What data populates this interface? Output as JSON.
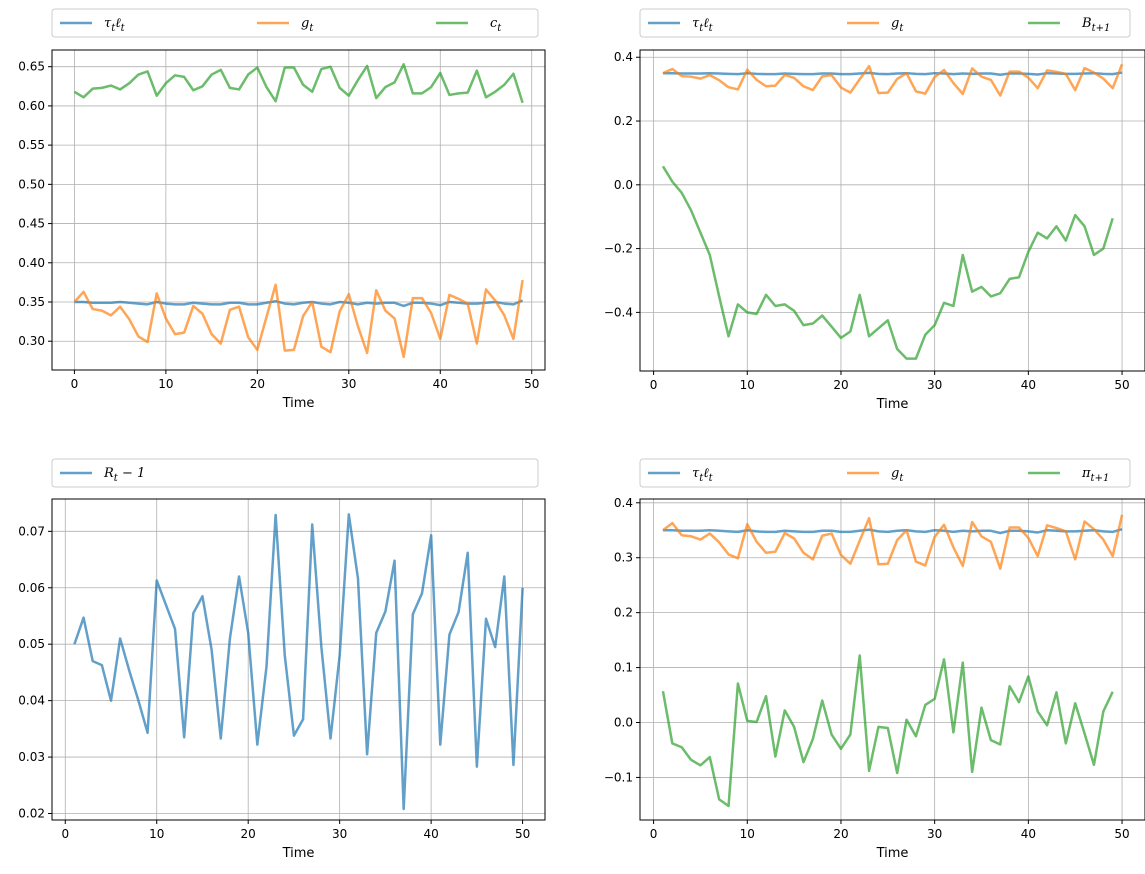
{
  "colors": {
    "blue": "#1f77b4",
    "orange": "#ff7f0e",
    "green": "#2ca02c",
    "grid": "#b0b0b0"
  },
  "chart_data": [
    {
      "type": "line",
      "xlabel": "Time",
      "xlim": [
        -2.45,
        51.45
      ],
      "ylim": [
        0.2633,
        0.6713
      ],
      "xticks": [
        0,
        10,
        20,
        30,
        40,
        50
      ],
      "yticks": [
        0.3,
        0.35,
        0.4,
        0.45,
        0.5,
        0.55,
        0.6,
        0.65
      ],
      "ytick_labels": [
        "0.30",
        "0.35",
        "0.40",
        "0.45",
        "0.50",
        "0.55",
        "0.60",
        "0.65"
      ],
      "grid": true,
      "legend_placement": "above",
      "series": [
        {
          "name": "τtℓt",
          "color": "#1f77b4",
          "x_start": 0,
          "x_step": 1,
          "values": [
            0.35,
            0.35,
            0.349,
            0.349,
            0.349,
            0.35,
            0.349,
            0.348,
            0.347,
            0.35,
            0.348,
            0.347,
            0.347,
            0.349,
            0.348,
            0.347,
            0.347,
            0.349,
            0.349,
            0.347,
            0.347,
            0.349,
            0.351,
            0.348,
            0.347,
            0.349,
            0.35,
            0.348,
            0.347,
            0.35,
            0.349,
            0.347,
            0.349,
            0.348,
            0.349,
            0.349,
            0.345,
            0.349,
            0.349,
            0.348,
            0.346,
            0.35,
            0.349,
            0.348,
            0.348,
            0.349,
            0.35,
            0.348,
            0.347,
            0.352
          ]
        },
        {
          "name": "gt",
          "color": "#ff7f0e",
          "x_start": 0,
          "x_step": 1,
          "values": [
            0.35,
            0.363,
            0.341,
            0.339,
            0.333,
            0.344,
            0.328,
            0.306,
            0.299,
            0.361,
            0.329,
            0.309,
            0.311,
            0.345,
            0.335,
            0.309,
            0.297,
            0.34,
            0.344,
            0.305,
            0.289,
            0.331,
            0.372,
            0.288,
            0.289,
            0.332,
            0.35,
            0.293,
            0.286,
            0.338,
            0.36,
            0.319,
            0.285,
            0.365,
            0.339,
            0.329,
            0.28,
            0.355,
            0.355,
            0.336,
            0.303,
            0.359,
            0.354,
            0.348,
            0.297,
            0.366,
            0.352,
            0.333,
            0.303,
            0.378
          ]
        },
        {
          "name": "ct",
          "color": "#2ca02c",
          "x_start": 0,
          "x_step": 1,
          "values": [
            0.618,
            0.611,
            0.622,
            0.623,
            0.626,
            0.621,
            0.629,
            0.64,
            0.644,
            0.613,
            0.629,
            0.639,
            0.637,
            0.62,
            0.625,
            0.64,
            0.646,
            0.623,
            0.621,
            0.64,
            0.649,
            0.624,
            0.606,
            0.649,
            0.649,
            0.627,
            0.618,
            0.647,
            0.65,
            0.623,
            0.613,
            0.633,
            0.651,
            0.61,
            0.624,
            0.63,
            0.653,
            0.616,
            0.616,
            0.624,
            0.642,
            0.614,
            0.616,
            0.617,
            0.645,
            0.611,
            0.618,
            0.627,
            0.641,
            0.604
          ]
        }
      ]
    },
    {
      "type": "line",
      "xlabel": "Time",
      "xlim": [
        -1.45,
        52.45
      ],
      "ylim": [
        -0.5838,
        0.4227
      ],
      "xticks": [
        0,
        10,
        20,
        30,
        40,
        50
      ],
      "yticks": [
        -0.4,
        -0.2,
        0.0,
        0.2,
        0.4
      ],
      "ytick_labels": [
        "−0.4",
        "−0.2",
        "0.0",
        "0.2",
        "0.4"
      ],
      "grid": true,
      "legend_placement": "above",
      "series": [
        {
          "name": "τtℓt",
          "color": "#1f77b4",
          "x_start": 1,
          "x_step": 1,
          "values": [
            0.35,
            0.35,
            0.349,
            0.349,
            0.349,
            0.35,
            0.349,
            0.348,
            0.347,
            0.35,
            0.348,
            0.347,
            0.347,
            0.349,
            0.348,
            0.347,
            0.347,
            0.349,
            0.349,
            0.347,
            0.347,
            0.349,
            0.351,
            0.348,
            0.347,
            0.349,
            0.35,
            0.348,
            0.347,
            0.35,
            0.349,
            0.347,
            0.349,
            0.348,
            0.349,
            0.349,
            0.345,
            0.349,
            0.349,
            0.348,
            0.346,
            0.35,
            0.349,
            0.348,
            0.348,
            0.349,
            0.35,
            0.348,
            0.347,
            0.352
          ]
        },
        {
          "name": "gt",
          "color": "#ff7f0e",
          "x_start": 1,
          "x_step": 1,
          "values": [
            0.35,
            0.363,
            0.341,
            0.339,
            0.333,
            0.344,
            0.328,
            0.306,
            0.299,
            0.361,
            0.329,
            0.309,
            0.311,
            0.345,
            0.335,
            0.309,
            0.297,
            0.34,
            0.344,
            0.305,
            0.289,
            0.331,
            0.372,
            0.288,
            0.289,
            0.332,
            0.35,
            0.293,
            0.286,
            0.338,
            0.36,
            0.319,
            0.285,
            0.365,
            0.339,
            0.329,
            0.28,
            0.355,
            0.355,
            0.336,
            0.303,
            0.359,
            0.354,
            0.348,
            0.297,
            0.366,
            0.352,
            0.333,
            0.303,
            0.378
          ]
        },
        {
          "name": "Bt+1",
          "color": "#2ca02c",
          "x_start": 1,
          "x_step": 1,
          "values": [
            0.058,
            0.01,
            -0.025,
            -0.08,
            -0.15,
            -0.22,
            -0.35,
            -0.475,
            -0.375,
            -0.4,
            -0.405,
            -0.345,
            -0.38,
            -0.375,
            -0.395,
            -0.44,
            -0.435,
            -0.41,
            -0.445,
            -0.48,
            -0.46,
            -0.345,
            -0.475,
            -0.45,
            -0.425,
            -0.515,
            -0.545,
            -0.545,
            -0.47,
            -0.44,
            -0.37,
            -0.38,
            -0.22,
            -0.335,
            -0.32,
            -0.35,
            -0.34,
            -0.295,
            -0.29,
            -0.21,
            -0.15,
            -0.168,
            -0.13,
            -0.175,
            -0.095,
            -0.13,
            -0.22,
            -0.2,
            -0.105
          ]
        }
      ]
    },
    {
      "type": "line",
      "xlabel": "Time",
      "xlim": [
        -1.45,
        52.45
      ],
      "ylim": [
        0.01885,
        0.07573
      ],
      "xticks": [
        0,
        10,
        20,
        30,
        40,
        50
      ],
      "yticks": [
        0.02,
        0.03,
        0.04,
        0.05,
        0.06,
        0.07
      ],
      "ytick_labels": [
        "0.02",
        "0.03",
        "0.04",
        "0.05",
        "0.06",
        "0.07"
      ],
      "grid": true,
      "legend_placement": "above",
      "series": [
        {
          "name": "Rt − 1",
          "color": "#1f77b4",
          "x_start": 1,
          "x_step": 1,
          "values": [
            0.05,
            0.0547,
            0.047,
            0.0463,
            0.04,
            0.051,
            0.0453,
            0.04,
            0.0343,
            0.0613,
            0.057,
            0.0527,
            0.0335,
            0.0555,
            0.0585,
            0.049,
            0.0333,
            0.051,
            0.062,
            0.052,
            0.0322,
            0.046,
            0.0729,
            0.048,
            0.0338,
            0.0367,
            0.0712,
            0.0495,
            0.0333,
            0.048,
            0.073,
            0.0617,
            0.0305,
            0.052,
            0.0558,
            0.0648,
            0.0208,
            0.0553,
            0.059,
            0.0693,
            0.0322,
            0.0517,
            0.0557,
            0.0662,
            0.0283,
            0.0545,
            0.0495,
            0.062,
            0.0286,
            0.06
          ]
        }
      ]
    },
    {
      "type": "line",
      "xlabel": "Time",
      "xlim": [
        -1.45,
        52.45
      ],
      "ylim": [
        -0.1775,
        0.4069
      ],
      "xticks": [
        0,
        10,
        20,
        30,
        40,
        50
      ],
      "yticks": [
        -0.1,
        0.0,
        0.1,
        0.2,
        0.3,
        0.4
      ],
      "ytick_labels": [
        "−0.1",
        "0.0",
        "0.1",
        "0.2",
        "0.3",
        "0.4"
      ],
      "grid": true,
      "legend_placement": "above",
      "series": [
        {
          "name": "τtℓt",
          "color": "#1f77b4",
          "x_start": 1,
          "x_step": 1,
          "values": [
            0.35,
            0.35,
            0.349,
            0.349,
            0.349,
            0.35,
            0.349,
            0.348,
            0.347,
            0.35,
            0.348,
            0.347,
            0.347,
            0.349,
            0.348,
            0.347,
            0.347,
            0.349,
            0.349,
            0.347,
            0.347,
            0.349,
            0.351,
            0.348,
            0.347,
            0.349,
            0.35,
            0.348,
            0.347,
            0.35,
            0.349,
            0.347,
            0.349,
            0.348,
            0.349,
            0.349,
            0.345,
            0.349,
            0.349,
            0.348,
            0.346,
            0.35,
            0.349,
            0.348,
            0.348,
            0.349,
            0.35,
            0.348,
            0.347,
            0.352
          ]
        },
        {
          "name": "gt",
          "color": "#ff7f0e",
          "x_start": 1,
          "x_step": 1,
          "values": [
            0.35,
            0.363,
            0.341,
            0.339,
            0.333,
            0.344,
            0.328,
            0.306,
            0.299,
            0.361,
            0.329,
            0.309,
            0.311,
            0.345,
            0.335,
            0.309,
            0.297,
            0.34,
            0.344,
            0.305,
            0.289,
            0.331,
            0.372,
            0.288,
            0.289,
            0.332,
            0.35,
            0.293,
            0.286,
            0.338,
            0.36,
            0.319,
            0.285,
            0.365,
            0.339,
            0.329,
            0.28,
            0.355,
            0.355,
            0.336,
            0.303,
            0.359,
            0.354,
            0.348,
            0.297,
            0.366,
            0.352,
            0.333,
            0.303,
            0.378
          ]
        },
        {
          "name": "πt+1",
          "color": "#2ca02c",
          "x_start": 1,
          "x_step": 1,
          "values": [
            0.057,
            -0.038,
            -0.045,
            -0.068,
            -0.078,
            -0.063,
            -0.14,
            -0.152,
            0.071,
            0.003,
            0.001,
            0.048,
            -0.062,
            0.022,
            -0.008,
            -0.072,
            -0.03,
            0.04,
            -0.022,
            -0.048,
            -0.022,
            0.122,
            -0.088,
            -0.008,
            -0.01,
            -0.092,
            0.005,
            -0.025,
            0.032,
            0.043,
            0.115,
            -0.018,
            0.109,
            -0.09,
            0.027,
            -0.032,
            -0.04,
            0.066,
            0.037,
            0.084,
            0.02,
            -0.005,
            0.055,
            -0.038,
            0.035,
            -0.02,
            -0.077,
            0.02,
            0.056
          ]
        }
      ]
    }
  ]
}
